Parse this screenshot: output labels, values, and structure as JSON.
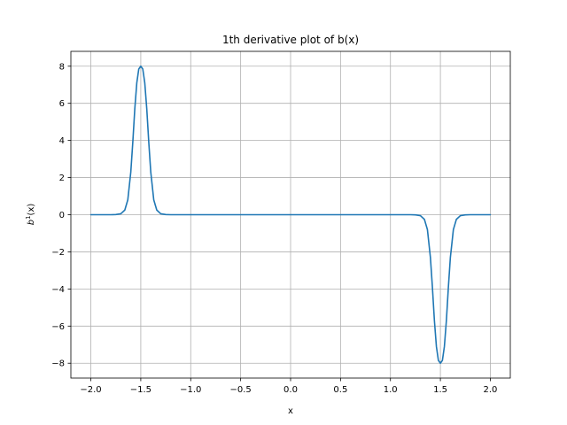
{
  "chart_data": {
    "type": "line",
    "title": "1th derivative plot of b(x)",
    "xlabel": "x",
    "ylabel_base": "b",
    "ylabel_sup": "1",
    "ylabel_rest": "(x)",
    "xlim": [
      -2.2,
      2.2
    ],
    "ylim": [
      -8.8,
      8.8
    ],
    "xticks": [
      -2.0,
      -1.5,
      -1.0,
      -0.5,
      0.0,
      0.5,
      1.0,
      1.5,
      2.0
    ],
    "xtick_labels": [
      "−2.0",
      "−1.5",
      "−1.0",
      "−0.5",
      "0.0",
      "0.5",
      "1.0",
      "1.5",
      "2.0"
    ],
    "yticks": [
      -8,
      -6,
      -4,
      -2,
      0,
      2,
      4,
      6,
      8
    ],
    "ytick_labels": [
      "−8",
      "−6",
      "−4",
      "−2",
      "0",
      "2",
      "4",
      "6",
      "8"
    ],
    "grid": true,
    "series": [
      {
        "color": "#1f77b4",
        "x": [
          -2.0,
          -1.9,
          -1.8,
          -1.75,
          -1.7,
          -1.66,
          -1.63,
          -1.6,
          -1.58,
          -1.56,
          -1.54,
          -1.52,
          -1.5,
          -1.48,
          -1.46,
          -1.44,
          -1.42,
          -1.4,
          -1.37,
          -1.34,
          -1.3,
          -1.25,
          -1.2,
          -1.0,
          -0.5,
          0.0,
          0.5,
          1.0,
          1.2,
          1.25,
          1.3,
          1.34,
          1.37,
          1.4,
          1.42,
          1.44,
          1.46,
          1.48,
          1.5,
          1.52,
          1.54,
          1.56,
          1.58,
          1.6,
          1.63,
          1.66,
          1.7,
          1.75,
          1.8,
          1.9,
          2.0
        ],
        "y": [
          0,
          0,
          0,
          0.01,
          0.05,
          0.25,
          0.8,
          2.3,
          3.9,
          5.7,
          7.1,
          7.85,
          8.0,
          7.85,
          7.1,
          5.7,
          3.9,
          2.3,
          0.8,
          0.25,
          0.05,
          0.01,
          0,
          0,
          0,
          0,
          0,
          0,
          0,
          -0.01,
          -0.05,
          -0.25,
          -0.8,
          -2.3,
          -3.9,
          -5.7,
          -7.1,
          -7.85,
          -8.0,
          -7.85,
          -7.1,
          -5.7,
          -3.9,
          -2.3,
          -0.8,
          -0.25,
          -0.05,
          -0.01,
          0,
          0,
          0
        ]
      }
    ]
  }
}
